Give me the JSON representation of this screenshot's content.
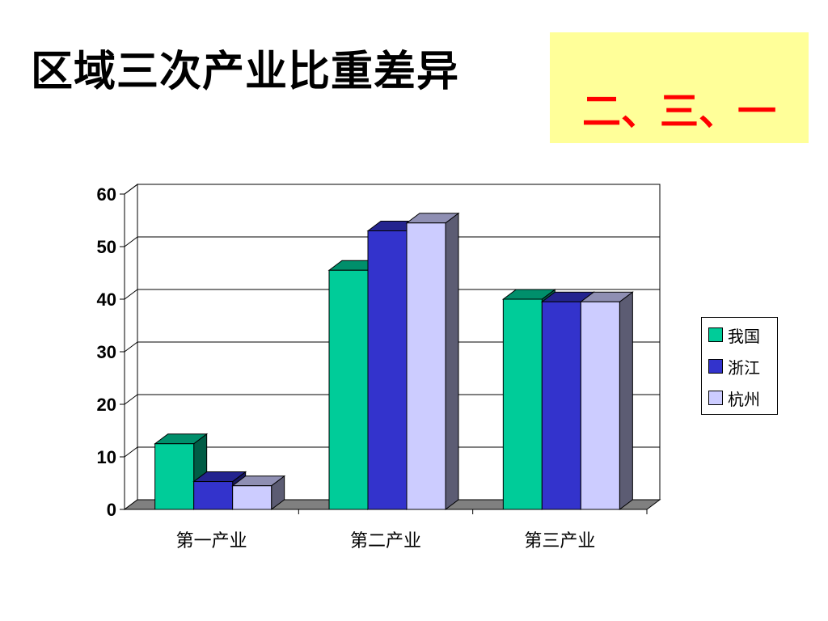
{
  "slide": {
    "title": "区域三次产业比重差异",
    "order_text": "二、三、一",
    "order_color": "#ff0000",
    "order_background": "#ffff99"
  },
  "chart_data": {
    "type": "bar",
    "style": "3d-clustered-column",
    "categories": [
      "第一产业",
      "第二产业",
      "第三产业"
    ],
    "series": [
      {
        "name": "我国",
        "values": [
          12.5,
          45.5,
          40.0
        ],
        "color": "#00cc99"
      },
      {
        "name": "浙江",
        "values": [
          5.3,
          53.0,
          39.5
        ],
        "color": "#3333cc"
      },
      {
        "name": "杭州",
        "values": [
          4.5,
          54.5,
          39.5
        ],
        "color": "#ccccff"
      }
    ],
    "ylim": [
      0,
      60
    ],
    "yticks": [
      "0",
      "10",
      "20",
      "30",
      "40",
      "50",
      "60"
    ],
    "grid": true,
    "legend_position": "right"
  }
}
